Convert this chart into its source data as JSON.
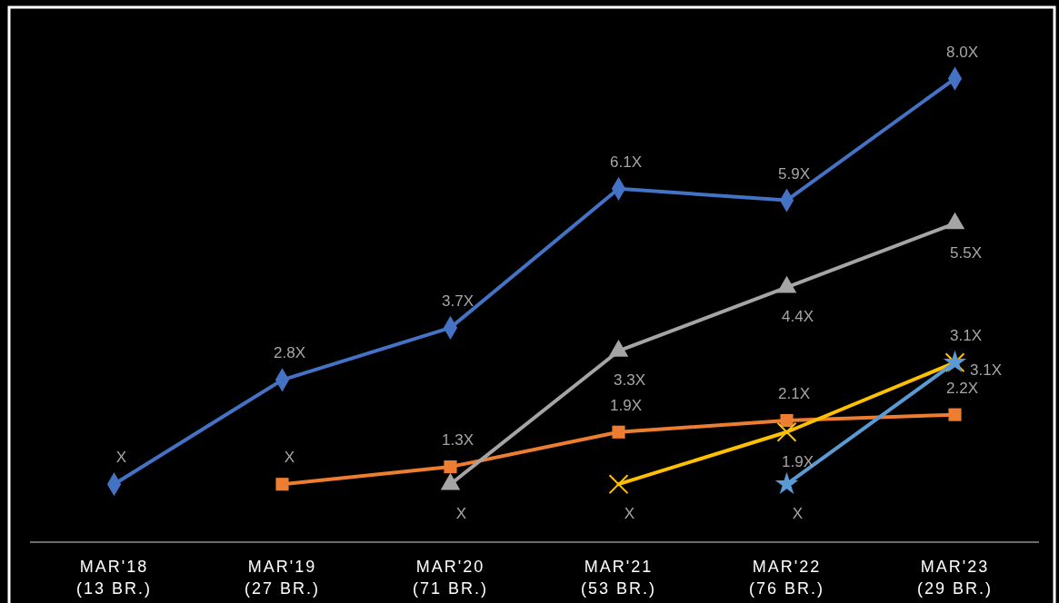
{
  "chart_data": {
    "type": "line",
    "categories": [
      "MAR'18\n(13 BR.)",
      "MAR'19\n(27 BR.)",
      "MAR'20\n(71 BR.)",
      "MAR'21\n(53 BR.)",
      "MAR'22\n(76 BR.)",
      "MAR'23\n(29 BR.)"
    ],
    "ylim": [
      0,
      9.2
    ],
    "tick_labels": "x",
    "grid": false,
    "series": [
      {
        "color": "#4472c4",
        "marker": "diamond",
        "values": [
          1,
          2.8,
          3.7,
          6.1,
          5.9,
          8.0
        ],
        "value_labels": [
          "X",
          "2.8X",
          "3.7X",
          "6.1X",
          "5.9X",
          "8.0X"
        ]
      },
      {
        "color": "#ed7d31",
        "marker": "square",
        "values": [
          null,
          1,
          1.3,
          1.9,
          2.1,
          2.2
        ],
        "value_labels": [
          null,
          "X",
          "1.3X",
          "1.9X",
          "2.1X",
          "2.2X"
        ]
      },
      {
        "color": "#a5a5a5",
        "marker": "triangle",
        "values": [
          null,
          null,
          1,
          3.3,
          4.4,
          5.5
        ],
        "value_labels": [
          null,
          null,
          "X",
          "3.3X",
          "4.4X",
          "5.5X"
        ]
      },
      {
        "color": "#ffc000",
        "marker": "cross",
        "values": [
          null,
          null,
          null,
          1,
          1.9,
          3.1
        ],
        "value_labels": [
          null,
          null,
          null,
          "X",
          "1.9X",
          "3.1X"
        ]
      },
      {
        "color": "#5b9bd5",
        "marker": "star",
        "values": [
          null,
          null,
          null,
          null,
          1,
          3.1
        ],
        "value_labels": [
          null,
          null,
          null,
          null,
          "X",
          "3.1X"
        ]
      }
    ]
  }
}
